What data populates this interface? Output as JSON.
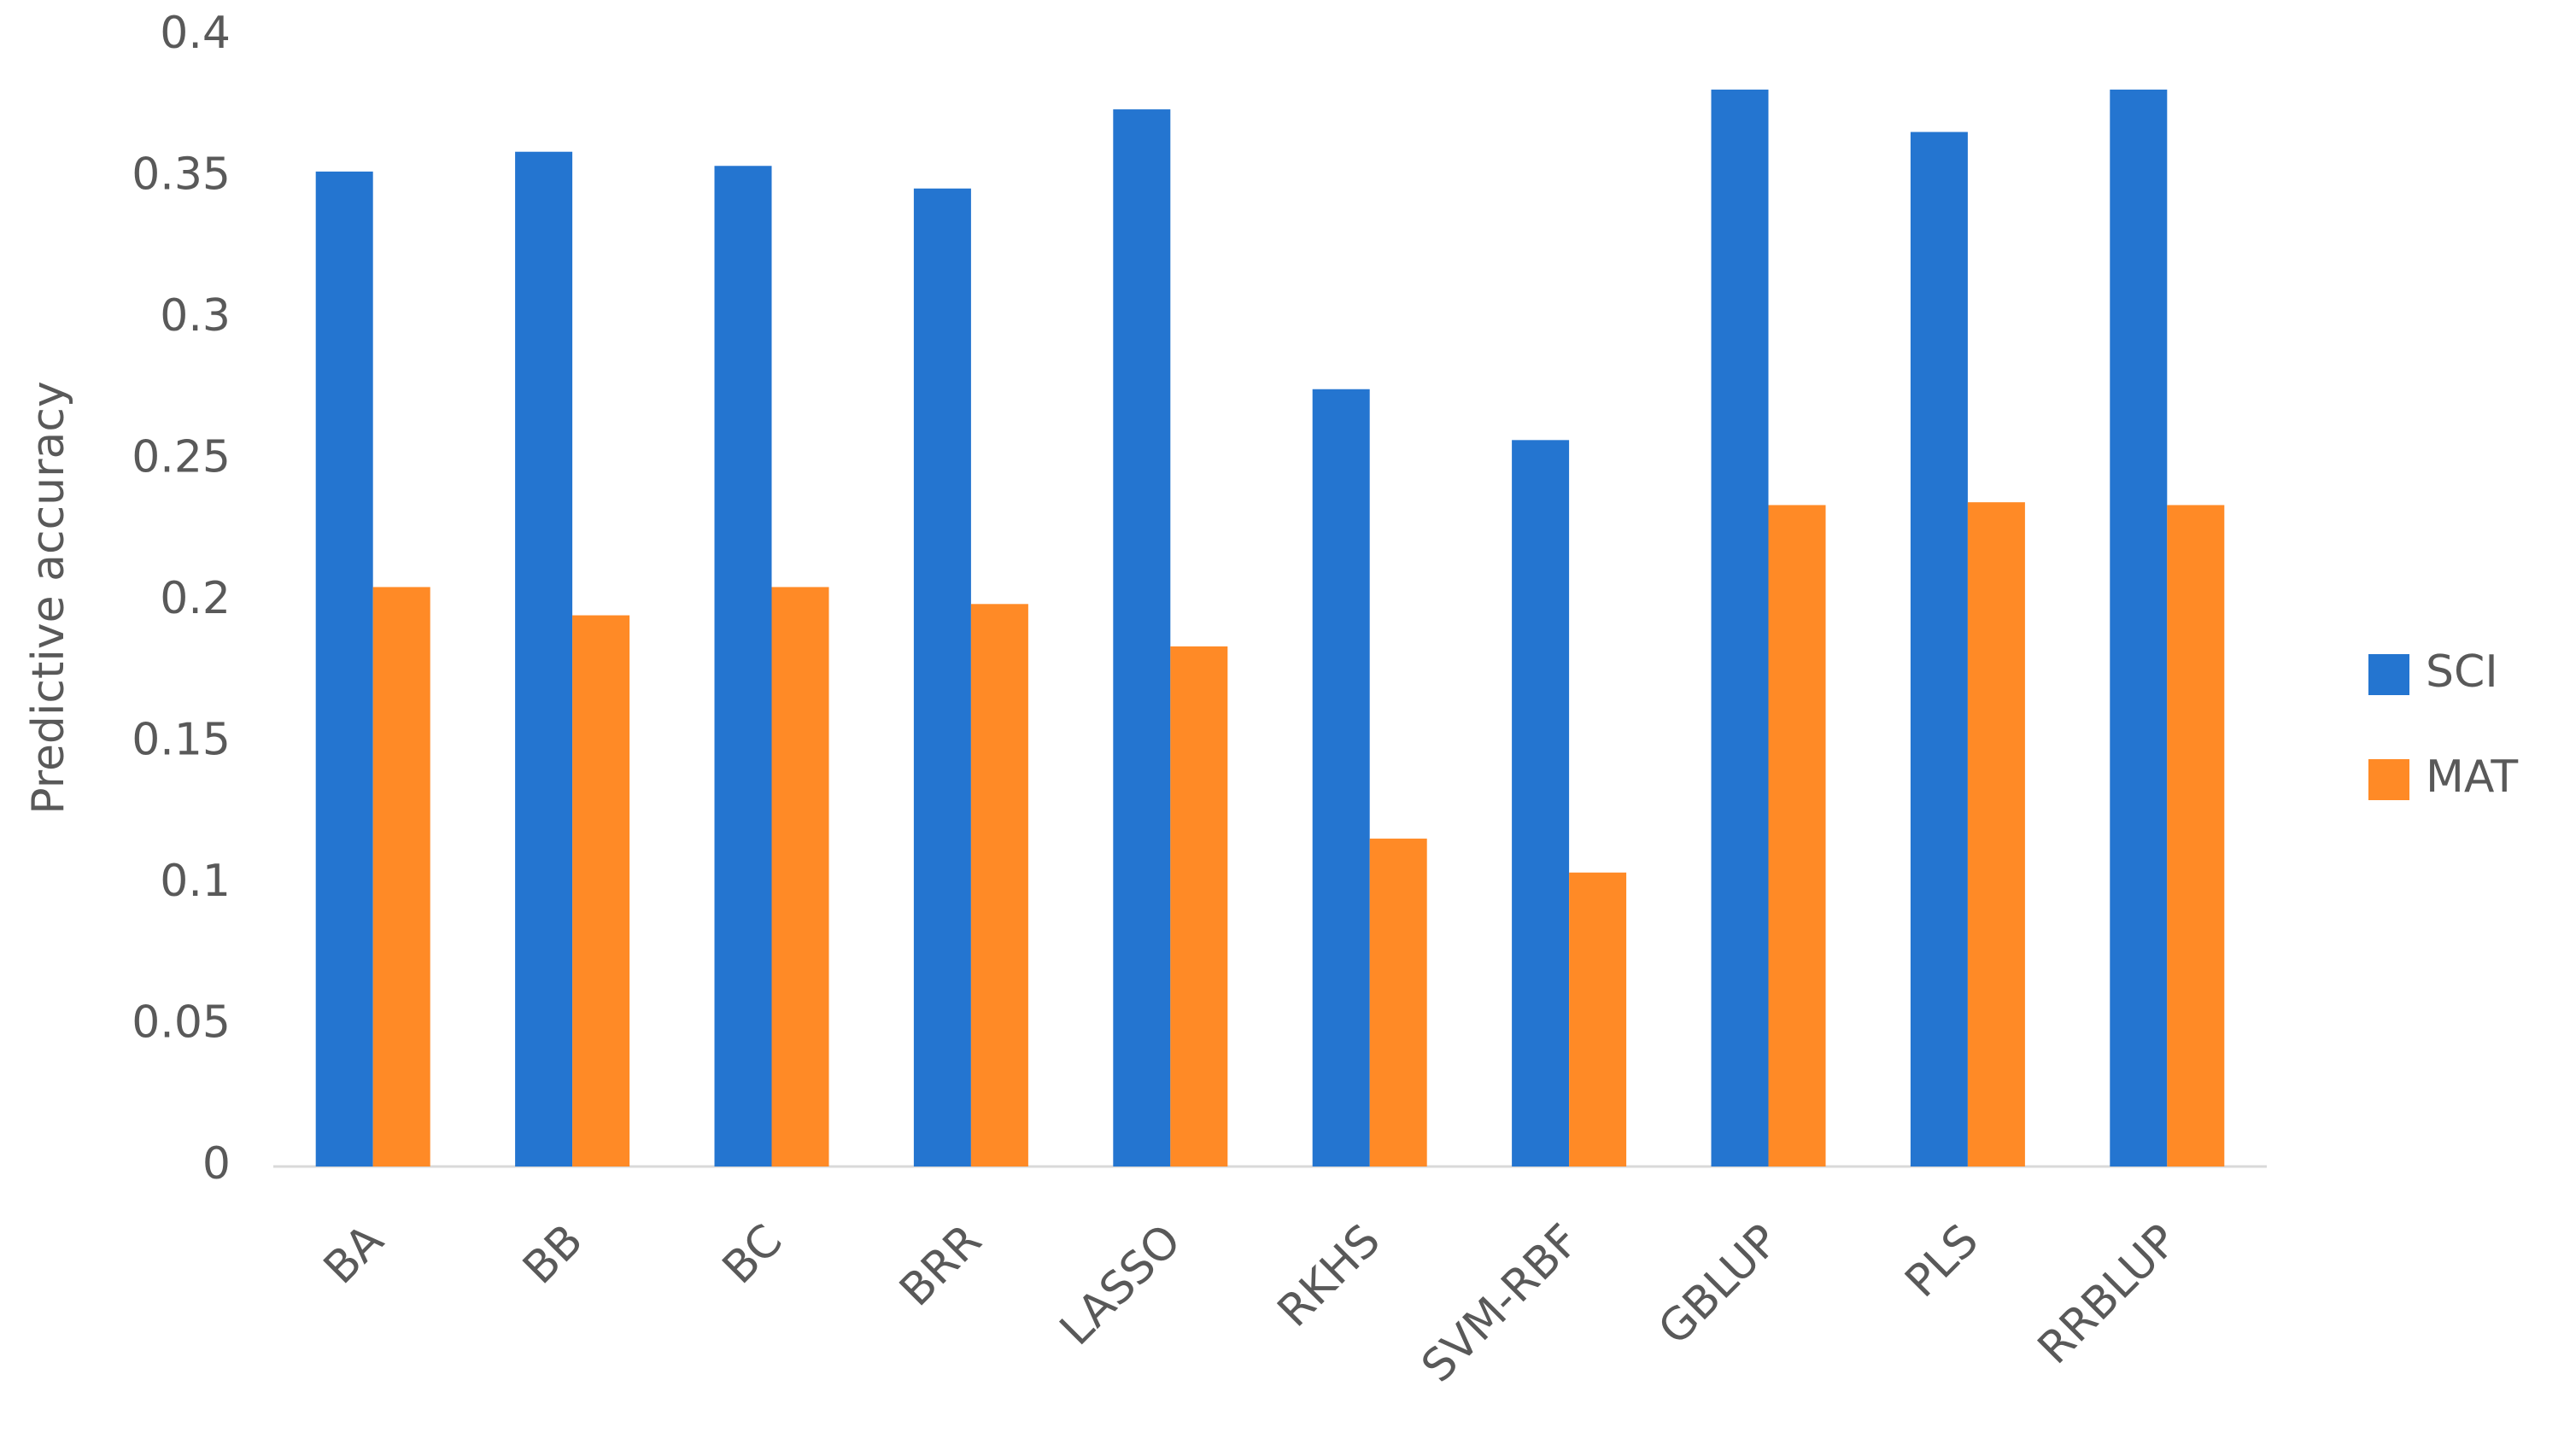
{
  "chart_data": {
    "type": "bar",
    "y_label": "Predictive accuracy",
    "categories": [
      "BA",
      "BB",
      "BC",
      "BRR",
      "LASSO",
      "RKHS",
      "SVM-RBF",
      "GBLUP",
      "PLS",
      "RRBLUP"
    ],
    "series": [
      {
        "name": "SCI",
        "color": "#2475d0",
        "values": [
          0.352,
          0.359,
          0.354,
          0.346,
          0.374,
          0.275,
          0.257,
          0.381,
          0.366,
          0.381
        ]
      },
      {
        "name": "MAT",
        "color": "#ff8a26",
        "values": [
          0.205,
          0.195,
          0.205,
          0.199,
          0.184,
          0.116,
          0.104,
          0.234,
          0.235,
          0.234
        ]
      }
    ],
    "ylim": [
      0,
      0.4
    ],
    "yticks": [
      0,
      0.05,
      0.1,
      0.15,
      0.2,
      0.25,
      0.3,
      0.35,
      0.4
    ],
    "legend": "right"
  }
}
